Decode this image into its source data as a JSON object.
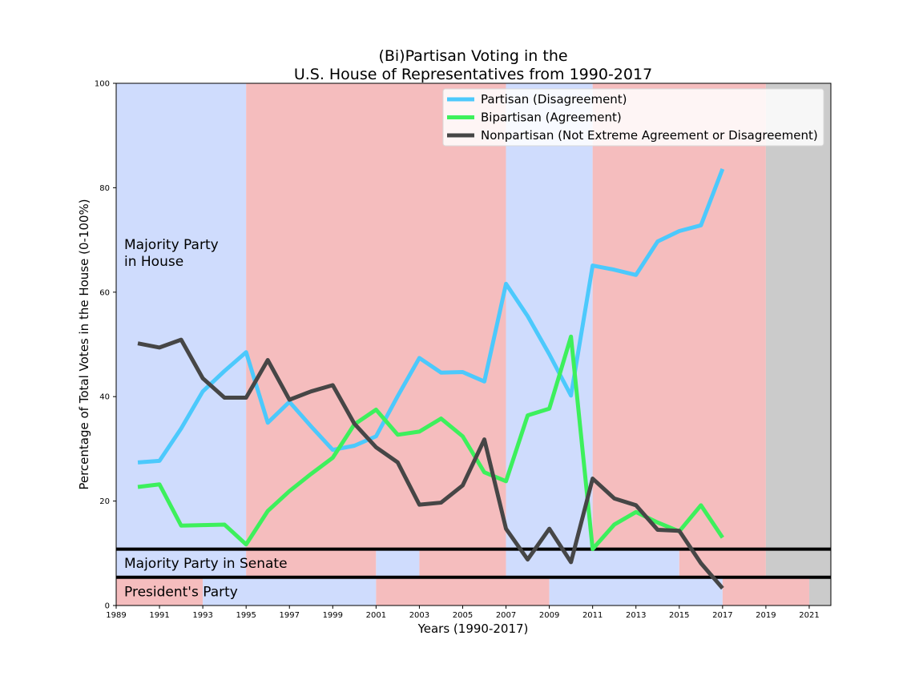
{
  "chart_data": {
    "type": "line",
    "title": [
      "(Bi)Partisan Voting in the",
      "U.S. House of Representatives from 1990-2017"
    ],
    "xlabel": "Years (1990-2017)",
    "ylabel": "Percentage of Total Votes in the House (0-100%)",
    "xlim": [
      1989,
      2022
    ],
    "ylim": [
      0,
      100
    ],
    "x_ticks": [
      1989,
      1991,
      1993,
      1995,
      1997,
      1999,
      2001,
      2003,
      2005,
      2007,
      2009,
      2011,
      2013,
      2015,
      2017,
      2019,
      2021
    ],
    "y_ticks": [
      0,
      20,
      40,
      60,
      80,
      100
    ],
    "legend_position": "top-right",
    "x": [
      1990,
      1991,
      1992,
      1993,
      1994,
      1995,
      1996,
      1997,
      1998,
      1999,
      2000,
      2001,
      2002,
      2003,
      2004,
      2005,
      2006,
      2007,
      2008,
      2009,
      2010,
      2011,
      2012,
      2013,
      2014,
      2015,
      2016,
      2017
    ],
    "series": [
      {
        "name": "Partisan (Disagreement)",
        "color": "#4cc9fc",
        "values": [
          27.4,
          27.7,
          33.9,
          41.0,
          44.9,
          48.5,
          35.0,
          39.0,
          34.3,
          29.8,
          30.6,
          32.4,
          40.1,
          47.4,
          44.6,
          44.7,
          42.9,
          61.6,
          55.4,
          48.1,
          40.2,
          65.1,
          64.3,
          63.3,
          69.7,
          71.7,
          72.8,
          83.6
        ]
      },
      {
        "name": "Bipartisan (Agreement)",
        "color": "#3df05c",
        "values": [
          22.7,
          23.2,
          15.3,
          15.4,
          15.5,
          11.7,
          18.1,
          21.9,
          25.2,
          28.3,
          34.7,
          37.5,
          32.7,
          33.3,
          35.8,
          32.4,
          25.5,
          23.8,
          36.4,
          37.7,
          51.5,
          10.8,
          15.5,
          17.9,
          15.9,
          14.2,
          19.2,
          13.0
        ]
      },
      {
        "name": "Nonpartisan (Not Extreme Agreement or Disagreement)",
        "color": "#464646",
        "values": [
          50.2,
          49.4,
          50.9,
          43.5,
          39.8,
          39.8,
          47.0,
          39.4,
          41.0,
          42.2,
          34.8,
          30.3,
          27.4,
          19.3,
          19.7,
          23.0,
          31.8,
          14.7,
          8.8,
          14.7,
          8.3,
          24.3,
          20.5,
          19.2,
          14.5,
          14.3,
          8.1,
          3.3
        ]
      }
    ],
    "bands": {
      "house": {
        "label": "Majority Party in House",
        "ymin": 10.8,
        "ymax": 100,
        "spans": [
          {
            "start": 1989,
            "end": 1995,
            "party": "D"
          },
          {
            "start": 1995,
            "end": 2007,
            "party": "R"
          },
          {
            "start": 2007,
            "end": 2011,
            "party": "D"
          },
          {
            "start": 2011,
            "end": 2019,
            "party": "R"
          },
          {
            "start": 2019,
            "end": 2022,
            "party": "none"
          }
        ]
      },
      "senate": {
        "label": "Majority Party in Senate",
        "ymin": 5.4,
        "ymax": 10.8,
        "spans": [
          {
            "start": 1989,
            "end": 1995,
            "party": "D"
          },
          {
            "start": 1995,
            "end": 2001,
            "party": "R"
          },
          {
            "start": 2001,
            "end": 2003,
            "party": "D"
          },
          {
            "start": 2003,
            "end": 2007,
            "party": "R"
          },
          {
            "start": 2007,
            "end": 2015,
            "party": "D"
          },
          {
            "start": 2015,
            "end": 2019,
            "party": "R"
          },
          {
            "start": 2019,
            "end": 2022,
            "party": "none"
          }
        ]
      },
      "president": {
        "label": "President's Party",
        "ymin": 0,
        "ymax": 5.4,
        "spans": [
          {
            "start": 1989,
            "end": 1993,
            "party": "R"
          },
          {
            "start": 1993,
            "end": 2001,
            "party": "D"
          },
          {
            "start": 2001,
            "end": 2009,
            "party": "R"
          },
          {
            "start": 2009,
            "end": 2017,
            "party": "D"
          },
          {
            "start": 2017,
            "end": 2021,
            "party": "R"
          },
          {
            "start": 2021,
            "end": 2022,
            "party": "none"
          }
        ]
      }
    },
    "house_label_lines": [
      "Majority Party",
      "in House"
    ],
    "party_colors": {
      "D": "#cfdcfd",
      "R": "#f5bdbe",
      "none": "#cbcbcb"
    },
    "divider_color": "#000000"
  }
}
